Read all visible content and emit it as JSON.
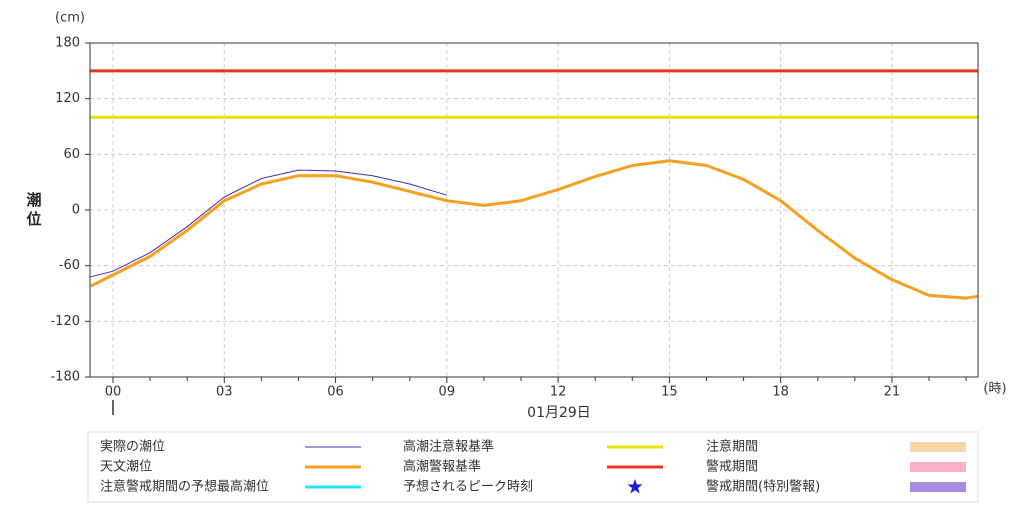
{
  "chart_data": {
    "type": "line",
    "y_unit": "(cm)",
    "y_label": "潮位",
    "x_unit": "(時)",
    "x_label": "01月29日",
    "x": [
      -0.6,
      0,
      1,
      2,
      3,
      4,
      5,
      6,
      7,
      8,
      9,
      10,
      11,
      12,
      13,
      14,
      15,
      16,
      17,
      18,
      19,
      20,
      21,
      22,
      23,
      23.3
    ],
    "series": [
      {
        "name": "実際の潮位",
        "color": "#4b2aa8",
        "width": 1,
        "values": [
          -72,
          -66,
          -46,
          -18,
          14,
          34,
          43,
          42,
          37,
          28,
          16,
          null,
          null,
          null,
          null,
          null,
          null,
          null,
          null,
          null,
          null,
          null,
          null,
          null,
          null,
          null
        ]
      },
      {
        "name": "天文潮位",
        "color": "#f5a01e",
        "width": 3,
        "values": [
          -82,
          -70,
          -50,
          -22,
          10,
          28,
          37,
          37,
          30,
          20,
          10,
          5,
          10,
          22,
          36,
          48,
          53,
          48,
          33,
          10,
          -22,
          -52,
          -75,
          -92,
          -95,
          -93
        ]
      }
    ],
    "reference_lines": [
      {
        "name": "高潮注意報基準",
        "color": "#e6e600",
        "value": 100
      },
      {
        "name": "高潮警報基準",
        "color": "#e8341c",
        "value": 150
      }
    ],
    "legend_items": [
      {
        "name": "注意警戒期間の予想最高潮位",
        "color": "#22e5f0",
        "marker": "line"
      },
      {
        "name": "予想されるピーク時刻",
        "color": "#1a1adb",
        "marker": "star"
      },
      {
        "name": "注意期間",
        "color": "#f9d5a7",
        "marker": "box"
      },
      {
        "name": "警戒期間",
        "color": "#f9b0c8",
        "marker": "box"
      },
      {
        "name": "警戒期間(特別警報)",
        "color": "#a78be0",
        "marker": "box"
      }
    ],
    "xlim": [
      -0.62,
      23.32
    ],
    "xticks": [
      {
        "value": 0,
        "label": "00"
      },
      {
        "value": 3,
        "label": "03"
      },
      {
        "value": 6,
        "label": "06"
      },
      {
        "value": 9,
        "label": "09"
      },
      12,
      15,
      18,
      21
    ],
    "xminorticks": [
      1,
      2,
      4,
      5,
      7,
      8,
      10,
      11,
      13,
      14,
      16,
      17,
      19,
      20,
      22,
      23
    ],
    "ylim": [
      -180,
      180
    ],
    "yticks": [
      -180,
      -120,
      -60,
      0,
      60,
      120,
      180
    ],
    "grid": true
  }
}
